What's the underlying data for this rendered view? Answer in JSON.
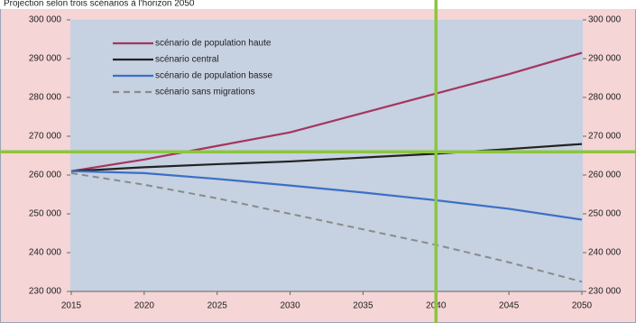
{
  "chart_data": {
    "type": "line",
    "title": "Projection selon trois scénarios à l'horizon 2050",
    "x": [
      2015,
      2020,
      2025,
      2030,
      2035,
      2040,
      2045,
      2050
    ],
    "series": [
      {
        "name": "scénario de population haute",
        "color": "#a3365e",
        "dash": false,
        "values": [
          261000,
          264000,
          267500,
          271000,
          276000,
          281000,
          286000,
          291500
        ]
      },
      {
        "name": "scénario central",
        "color": "#222222",
        "dash": false,
        "values": [
          261000,
          262000,
          262800,
          263500,
          264500,
          265500,
          266700,
          268000
        ]
      },
      {
        "name": "scénario de population basse",
        "color": "#3b6fc6",
        "dash": false,
        "values": [
          261000,
          260500,
          259000,
          257300,
          255500,
          253500,
          251300,
          248500
        ]
      },
      {
        "name": "scénario sans migrations",
        "color": "#8a8a8a",
        "dash": true,
        "values": [
          260500,
          257500,
          254000,
          250000,
          246000,
          242000,
          237500,
          232500
        ]
      }
    ],
    "xlim": [
      2015,
      2050
    ],
    "xticks": [
      2015,
      2020,
      2025,
      2030,
      2035,
      2040,
      2045,
      2050
    ],
    "ylim": [
      230000,
      300000
    ],
    "yticks": [
      {
        "value": 230000,
        "label": "230 000"
      },
      {
        "value": 240000,
        "label": "240 000"
      },
      {
        "value": 250000,
        "label": "250 000"
      },
      {
        "value": 260000,
        "label": "260 000"
      },
      {
        "value": 270000,
        "label": "270 000"
      },
      {
        "value": 280000,
        "label": "280 000"
      },
      {
        "value": 290000,
        "label": "290 000"
      },
      {
        "value": 300000,
        "label": "300 000"
      }
    ],
    "y2lim": [
      230000,
      300000
    ],
    "y2ticks": [
      {
        "value": 230000,
        "label": "230 000"
      },
      {
        "value": 240000,
        "label": "240 000"
      },
      {
        "value": 250000,
        "label": "250 000"
      },
      {
        "value": 260000,
        "label": "260 000"
      },
      {
        "value": 270000,
        "label": "270 000"
      },
      {
        "value": 280000,
        "label": "280 000"
      },
      {
        "value": 290000,
        "label": "290 000"
      },
      {
        "value": 300000,
        "label": "300 000"
      }
    ],
    "highlight_x": 2040,
    "highlight_y": 266000,
    "highlight_color": "#8cc63f",
    "grid": false,
    "legend": "upper left"
  }
}
